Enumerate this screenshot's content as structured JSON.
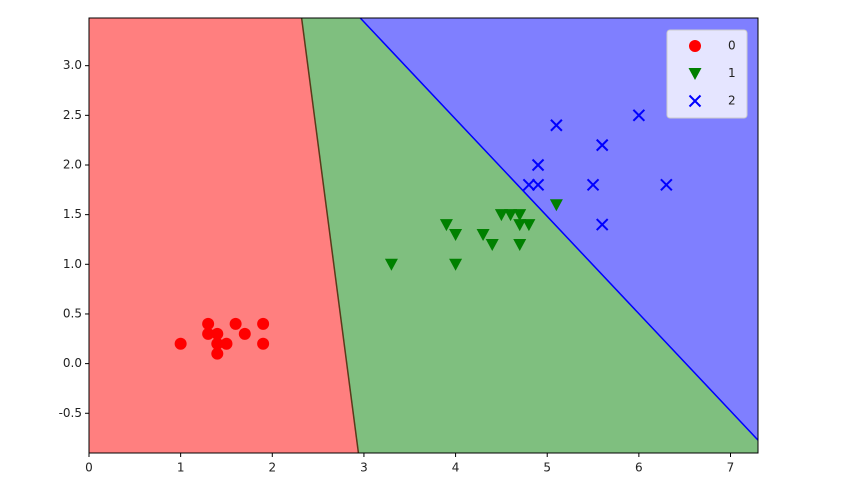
{
  "chart_data": {
    "type": "scatter",
    "xlim": [
      0,
      7.3
    ],
    "ylim": [
      -0.9,
      3.48
    ],
    "xticks": [
      0,
      1,
      2,
      3,
      4,
      5,
      6,
      7
    ],
    "yticks": [
      -0.5,
      {
        "value": 0,
        "label": "0.0"
      },
      0.5,
      {
        "value": 1,
        "label": "1.0"
      },
      1.5,
      {
        "value": 2,
        "label": "2.0"
      },
      2.5,
      {
        "value": 3,
        "label": "3.0"
      }
    ],
    "legend": "upper right",
    "boundaries": [
      {
        "x": [
          2.32,
          2.94
        ],
        "y": [
          3.48,
          -0.9
        ],
        "color": "#5a3a1a"
      },
      {
        "x": [
          2.96,
          7.3
        ],
        "y": [
          3.48,
          -0.77
        ],
        "color": "#0000ff"
      }
    ],
    "series": [
      {
        "name": "0",
        "color": "#ff0000",
        "marker": "o",
        "x": [
          1.0,
          1.3,
          1.3,
          1.4,
          1.4,
          1.4,
          1.5,
          1.6,
          1.7,
          1.9,
          1.9
        ],
        "values": [
          0.2,
          0.4,
          0.3,
          0.3,
          0.2,
          0.1,
          0.2,
          0.4,
          0.3,
          0.4,
          0.2
        ]
      },
      {
        "name": "1",
        "color": "#008000",
        "marker": "v",
        "x": [
          3.3,
          3.9,
          4.0,
          4.0,
          4.3,
          4.4,
          4.5,
          4.6,
          4.7,
          4.7,
          4.8,
          4.7,
          5.1
        ],
        "values": [
          1.0,
          1.4,
          1.3,
          1.0,
          1.3,
          1.2,
          1.5,
          1.5,
          1.5,
          1.4,
          1.4,
          1.2,
          1.6
        ]
      },
      {
        "name": "2",
        "color": "#0000ff",
        "marker": "x",
        "x": [
          4.8,
          4.9,
          4.9,
          5.1,
          5.5,
          5.6,
          5.6,
          6.0,
          6.3
        ],
        "values": [
          1.8,
          1.8,
          2.0,
          2.4,
          1.8,
          2.2,
          1.4,
          2.5,
          1.8
        ]
      }
    ]
  }
}
